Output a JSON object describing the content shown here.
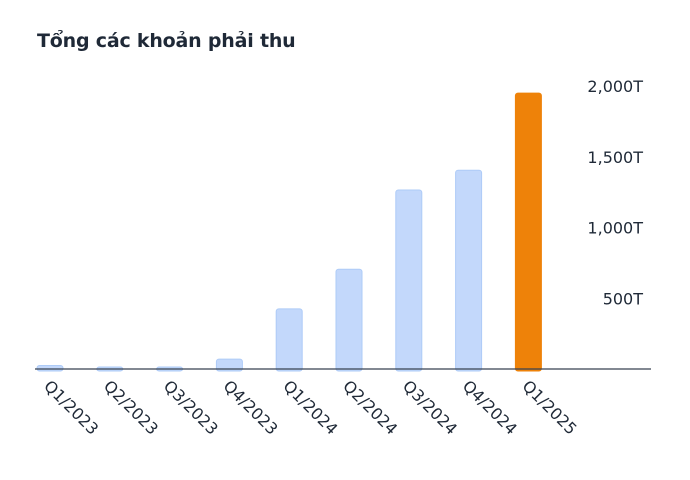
{
  "title": "Tổng các khoản phải thu",
  "colors": {
    "bar": "#c3d8fb",
    "bar_stroke": "#aecbf7",
    "highlight": "#ee8209",
    "axis": "#374151",
    "text": "#1f2937"
  },
  "chart_data": {
    "type": "bar",
    "title": "Tổng các khoản phải thu",
    "xlabel": "",
    "ylabel": "",
    "categories": [
      "Q1/2023",
      "Q2/2023",
      "Q3/2023",
      "Q4/2023",
      "Q1/2024",
      "Q2/2024",
      "Q3/2024",
      "Q4/2024",
      "Q1/2025"
    ],
    "values": [
      25,
      8,
      12,
      70,
      425,
      705,
      1265,
      1405,
      1950
    ],
    "highlight_index": 8,
    "ylim": [
      0,
      2000
    ],
    "yticks": [
      500,
      1000,
      1500,
      2000
    ],
    "ytick_labels": [
      "500T",
      "1,000T",
      "1,500T",
      "2,000T"
    ],
    "yaxis_position": "right",
    "grid": false,
    "legend": "none"
  }
}
